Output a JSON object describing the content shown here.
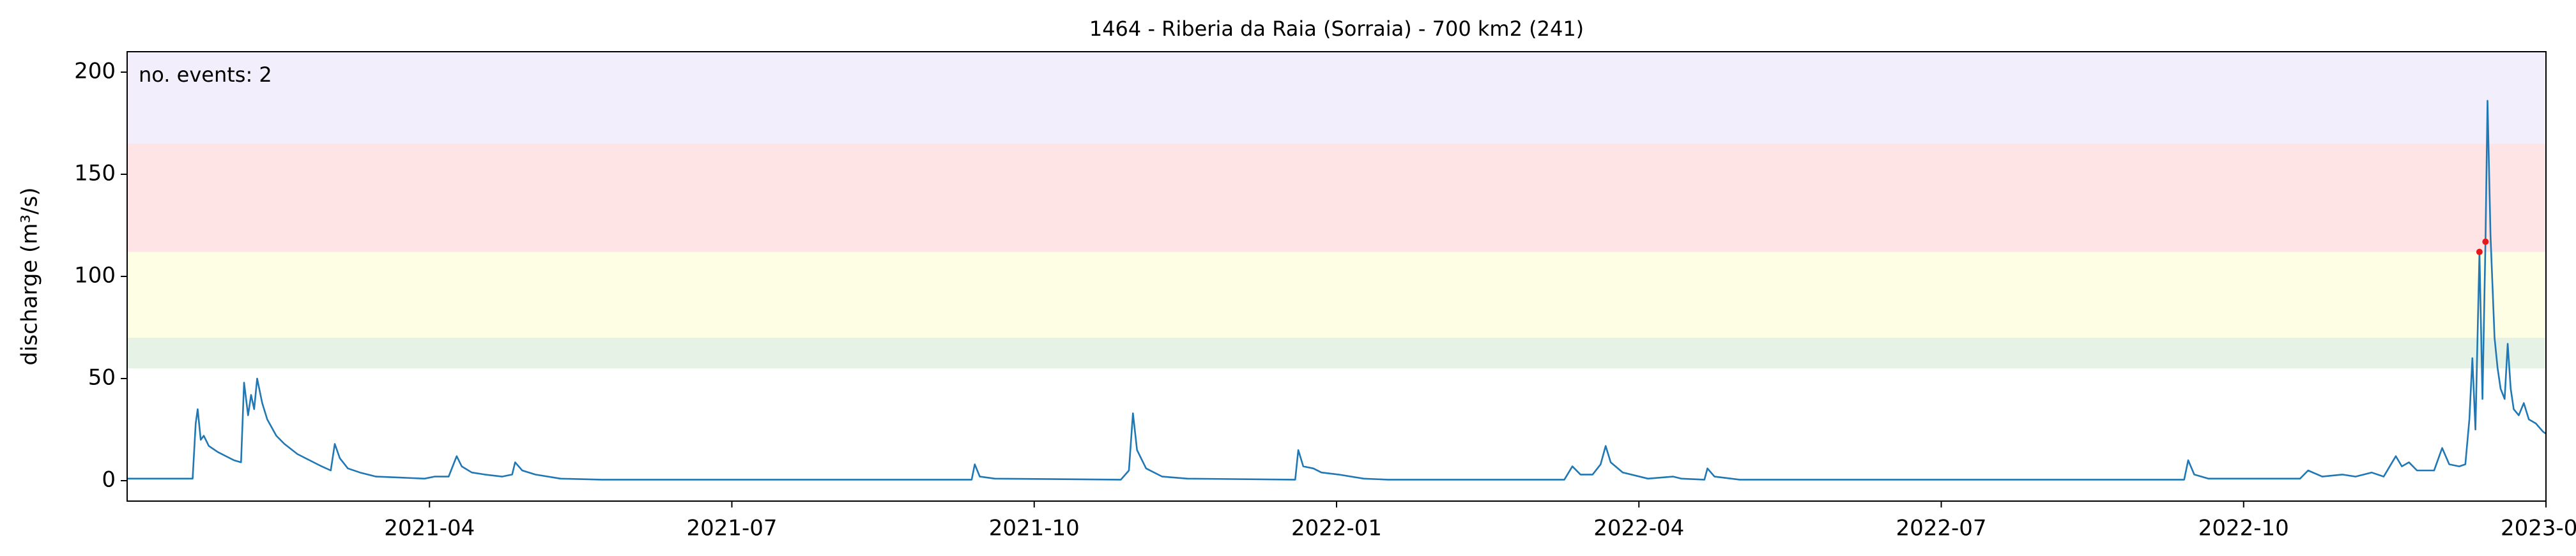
{
  "chart_data": {
    "type": "line",
    "title": "1464 - Riberia da Raia (Sorraia) - 700 km2 (241)",
    "ylabel": "discharge (m³/s)",
    "annotation": "no. events: 2",
    "annotation_color": "#e31a1c",
    "xlim": [
      0,
      24
    ],
    "xticks": [
      {
        "value": 3,
        "label": "2021-04"
      },
      {
        "value": 6,
        "label": "2021-07"
      },
      {
        "value": 9,
        "label": "2021-10"
      },
      {
        "value": 12,
        "label": "2022-01"
      },
      {
        "value": 15,
        "label": "2022-04"
      },
      {
        "value": 18,
        "label": "2022-07"
      },
      {
        "value": 21,
        "label": "2022-10"
      },
      {
        "value": 24,
        "label": "2023-01"
      }
    ],
    "ylim": [
      -10,
      210
    ],
    "yticks": [
      0,
      50,
      100,
      150,
      200
    ],
    "bands": [
      {
        "from": 55,
        "to": 70,
        "color": "#e5f2e5"
      },
      {
        "from": 70,
        "to": 112,
        "color": "#fefee5"
      },
      {
        "from": 112,
        "to": 165,
        "color": "#ffe4e6"
      },
      {
        "from": 165,
        "to": 210,
        "color": "#f2eefb"
      }
    ],
    "x": [
      0,
      0.65,
      0.68,
      0.7,
      0.73,
      0.76,
      0.81,
      0.9,
      0.98,
      1.06,
      1.13,
      1.16,
      1.2,
      1.23,
      1.26,
      1.29,
      1.34,
      1.39,
      1.48,
      1.56,
      1.69,
      1.81,
      1.93,
      2.02,
      2.06,
      2.11,
      2.19,
      2.31,
      2.47,
      2.72,
      2.95,
      3.05,
      3.19,
      3.27,
      3.32,
      3.42,
      3.55,
      3.72,
      3.82,
      3.85,
      3.92,
      4.05,
      4.3,
      4.71,
      8.38,
      8.41,
      8.46,
      8.61,
      9.86,
      9.94,
      9.98,
      10.02,
      10.11,
      10.27,
      10.52,
      11.59,
      11.62,
      11.67,
      11.77,
      11.85,
      12.02,
      12.27,
      12.51,
      14.26,
      14.34,
      14.42,
      14.54,
      14.62,
      14.67,
      14.72,
      14.84,
      15.09,
      15.34,
      15.42,
      15.65,
      15.68,
      15.75,
      16.0,
      20.41,
      20.45,
      20.51,
      20.65,
      21.56,
      21.64,
      21.78,
      21.98,
      22.11,
      22.27,
      22.39,
      22.51,
      22.57,
      22.64,
      22.72,
      22.89,
      22.97,
      23.04,
      23.14,
      23.2,
      23.24,
      23.27,
      23.3,
      23.34,
      23.37,
      23.4,
      23.42,
      23.45,
      23.49,
      23.52,
      23.55,
      23.59,
      23.62,
      23.65,
      23.68,
      23.73,
      23.78,
      23.83,
      23.9,
      23.97,
      24.0
    ],
    "series": [
      {
        "color": "#1f77b4",
        "values": [
          1,
          1,
          28,
          35,
          20,
          22,
          17,
          14,
          12,
          10,
          9,
          48,
          32,
          42,
          35,
          50,
          38,
          30,
          22,
          18,
          13,
          10,
          7,
          5,
          18,
          11,
          6,
          4,
          2,
          1.5,
          1,
          2,
          2,
          12,
          7,
          4,
          3,
          2,
          3,
          9,
          5,
          3,
          1,
          0.5,
          0.5,
          8,
          2,
          1,
          0.5,
          5,
          33,
          15,
          6,
          2,
          1,
          0.5,
          15,
          7,
          6,
          4,
          3,
          1,
          0.5,
          0.5,
          7,
          3,
          3,
          8,
          17,
          9,
          4,
          1,
          2,
          1,
          0.5,
          6,
          2,
          0.5,
          0.5,
          10,
          3,
          1,
          1,
          5,
          2,
          3,
          2,
          4,
          2,
          12,
          7,
          9,
          5,
          5,
          16,
          8,
          7,
          8,
          30,
          60,
          25,
          112,
          40,
          117,
          186,
          120,
          70,
          55,
          45,
          40,
          67,
          45,
          35,
          32,
          38,
          30,
          28,
          24,
          23
        ]
      }
    ],
    "events": {
      "color": "#e31a1c",
      "x": [
        23.34,
        23.4
      ],
      "values": [
        112,
        117
      ]
    }
  }
}
